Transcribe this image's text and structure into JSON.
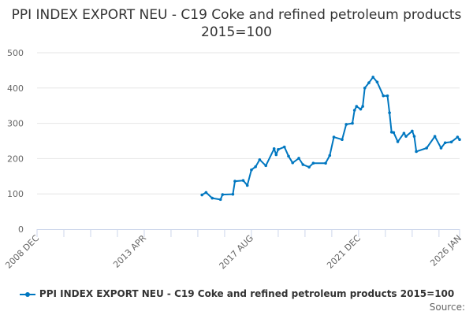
{
  "chart_data": {
    "type": "line",
    "title": "PPI INDEX EXPORT NEU - C19 Coke and refined petroleum products 2015=100",
    "xlabel": "",
    "ylabel": "",
    "ylim": [
      0,
      500
    ],
    "yticks": [
      "0",
      "100",
      "200",
      "300",
      "400",
      "500"
    ],
    "xlim": [
      "2008-12",
      "2026-01"
    ],
    "xticks": [
      {
        "date": "2008-12",
        "label": "2008 DEC"
      },
      {
        "date": "2013-04",
        "label": "2013 APR"
      },
      {
        "date": "2017-08",
        "label": "2017 AUG"
      },
      {
        "date": "2021-12",
        "label": "2021 DEC"
      },
      {
        "date": "2026-01",
        "label": "2026 JAN"
      }
    ],
    "grid": true,
    "legend_position": "bottom",
    "color": "#0077c0",
    "series": [
      {
        "name": "PPI INDEX EXPORT NEU - C19 Coke and refined petroleum products 2015=100",
        "x": [
          "2015-08",
          "2015-10",
          "2016-01",
          "2016-05",
          "2016-06",
          "2016-11",
          "2016-12",
          "2017-04",
          "2017-06",
          "2017-08",
          "2017-10",
          "2017-12",
          "2018-03",
          "2018-07",
          "2018-08",
          "2018-09",
          "2018-12",
          "2019-02",
          "2019-04",
          "2019-07",
          "2019-09",
          "2019-12",
          "2020-02",
          "2020-08",
          "2020-10",
          "2020-12",
          "2021-04",
          "2021-06",
          "2021-09",
          "2021-10",
          "2021-11",
          "2022-01",
          "2022-02",
          "2022-03",
          "2022-05",
          "2022-07",
          "2022-09",
          "2022-12",
          "2023-02",
          "2023-03",
          "2023-04",
          "2023-05",
          "2023-07",
          "2023-10",
          "2023-11",
          "2024-02",
          "2024-03",
          "2024-04",
          "2024-09",
          "2025-01",
          "2025-04",
          "2025-06",
          "2025-09",
          "2025-12",
          "2026-01"
        ],
        "values": [
          97,
          104,
          88,
          84,
          98,
          99,
          136,
          138,
          124,
          168,
          177,
          197,
          180,
          228,
          211,
          226,
          233,
          207,
          188,
          201,
          183,
          176,
          187,
          187,
          209,
          261,
          254,
          297,
          300,
          337,
          348,
          340,
          348,
          400,
          415,
          431,
          417,
          378,
          378,
          330,
          275,
          274,
          248,
          272,
          263,
          278,
          263,
          220,
          230,
          263,
          230,
          245,
          247,
          261,
          254
        ]
      }
    ]
  },
  "source_label": "Source:"
}
